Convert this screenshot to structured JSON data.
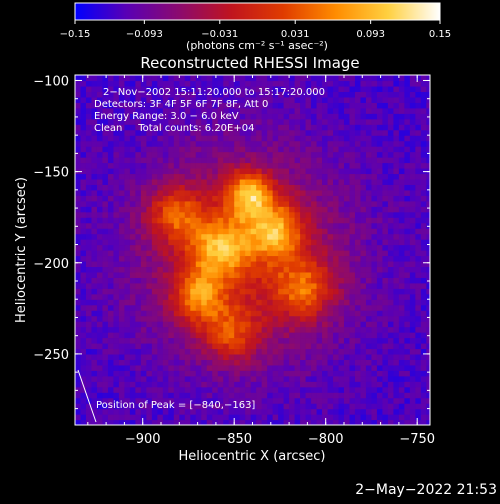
{
  "chart_data": {
    "type": "heatmap",
    "title": "Reconstructed RHESSI Image",
    "xlabel": "Heliocentric X (arcsec)",
    "ylabel": "Heliocentric Y (arcsec)",
    "xlim": [
      -937,
      -743
    ],
    "ylim": [
      -289,
      -97
    ],
    "x_ticks": [
      -900,
      -850,
      -800,
      -750
    ],
    "y_ticks": [
      -250,
      -200,
      -150,
      -100
    ],
    "x_tick_labels": [
      "−900",
      "−850",
      "−800",
      "−750"
    ],
    "y_tick_labels": [
      "−250",
      "−200",
      "−150",
      "−100"
    ],
    "colorbar": {
      "range": [
        -0.15,
        0.15
      ],
      "ticks": [
        -0.15,
        -0.093,
        -0.031,
        0.031,
        0.093,
        0.15
      ],
      "tick_labels": [
        "−0.15",
        "−0.093",
        "−0.031",
        "0.031",
        "0.093",
        "0.15"
      ],
      "unit_label": "(photons cm⁻² s⁻¹ asec⁻²)",
      "colors": [
        "#0000ff",
        "#5a00b4",
        "#8c0a6e",
        "#c0141e",
        "#e03c00",
        "#ff8c00",
        "#ffd040",
        "#ffffff"
      ]
    },
    "annotations": [
      "2−Nov−2002 15:11:20.000 to 15:17:20.000",
      "Detectors: 3F 4F 5F 6F 7F 8F, Att 0",
      "Energy Range: 3.0 − 6.0 keV",
      "Clean     Total counts: 6.20E+04"
    ],
    "peak": {
      "label": "Position of Peak = [−840,−163]",
      "x": -840,
      "y": -163
    },
    "source": {
      "components": [
        {
          "x": -842,
          "y": -162,
          "sigma": 9,
          "amp": 0.155
        },
        {
          "x": -828,
          "y": -182,
          "sigma": 11,
          "amp": 0.135
        },
        {
          "x": -858,
          "y": -192,
          "sigma": 12,
          "amp": 0.13
        },
        {
          "x": -870,
          "y": -218,
          "sigma": 10,
          "amp": 0.12
        },
        {
          "x": -882,
          "y": -173,
          "sigma": 11,
          "amp": 0.105
        },
        {
          "x": -812,
          "y": -214,
          "sigma": 12,
          "amp": 0.11
        },
        {
          "x": -852,
          "y": -238,
          "sigma": 11,
          "amp": 0.1
        },
        {
          "x": -845,
          "y": -195,
          "sigma": 40,
          "amp": 0.09
        }
      ],
      "background": -0.115
    }
  },
  "footer": {
    "timestamp": "2−May−2022 21:53"
  }
}
